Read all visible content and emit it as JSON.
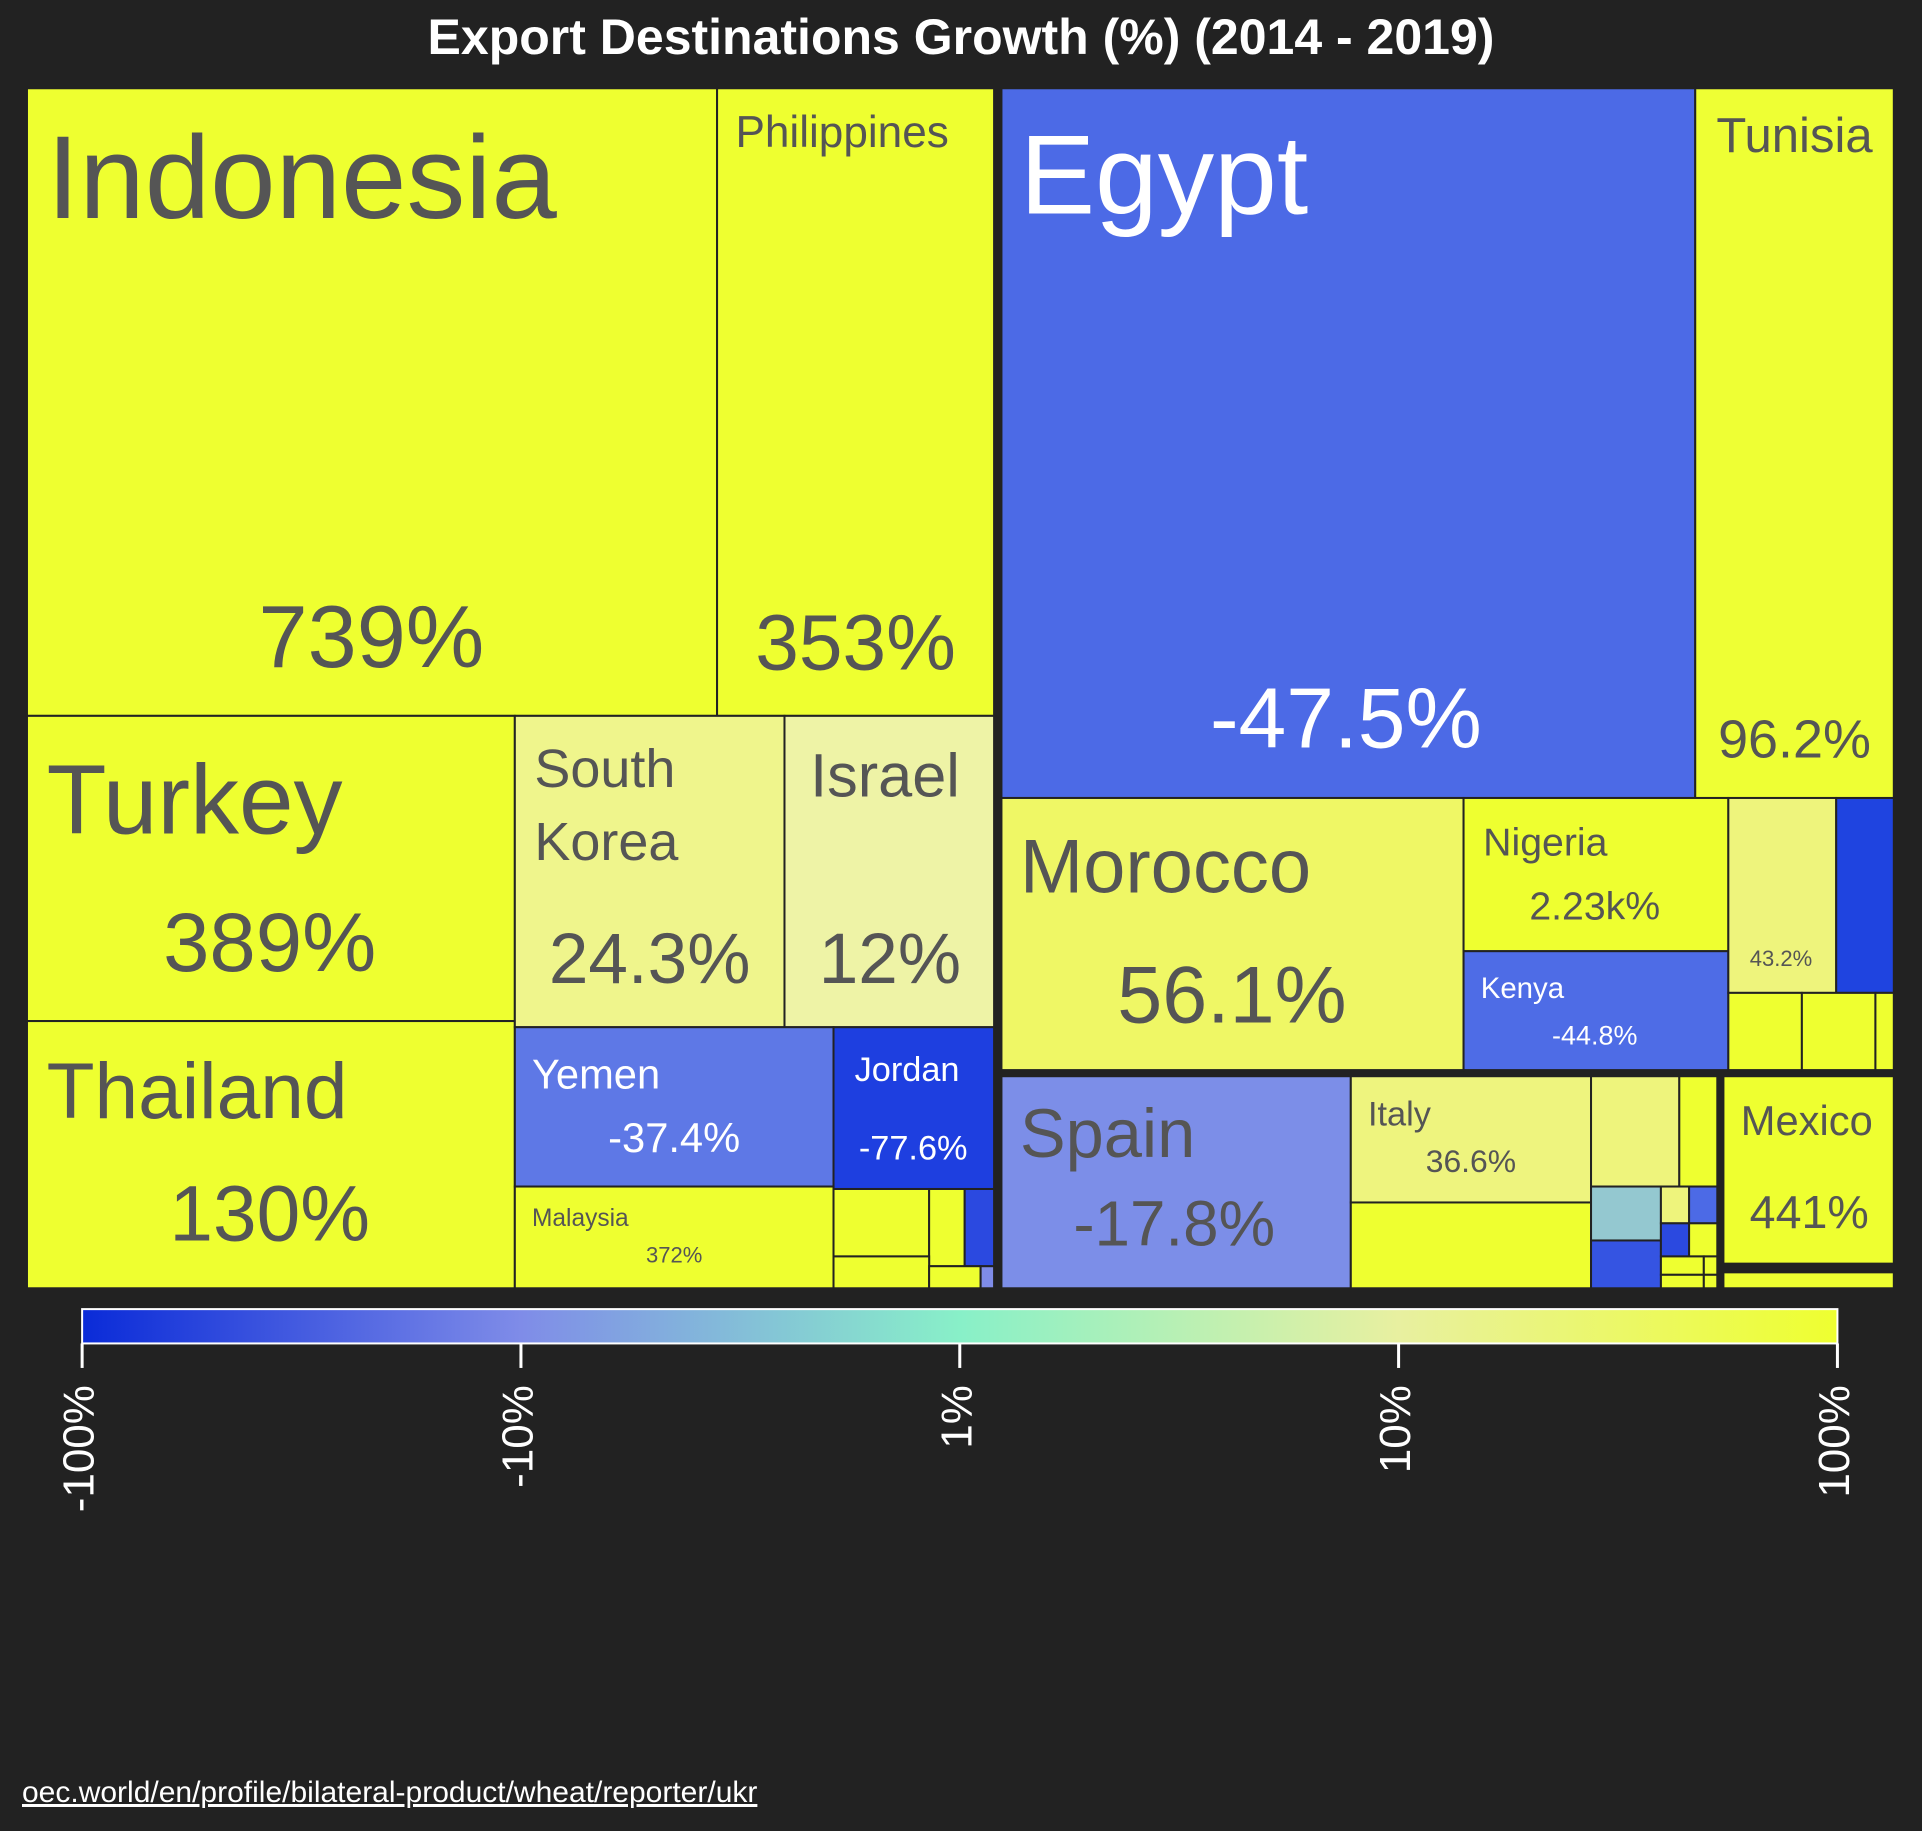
{
  "chart_data": {
    "type": "treemap",
    "title": "Export Destinations Growth (%) (2014 - 2019)",
    "colorscale": {
      "colors": [
        "#0a2bd8",
        "#7f8ce8",
        "#88f0c8",
        "#e8f0a0",
        "#eeff30"
      ],
      "ticks": [
        "-100%",
        "-10%",
        "1%",
        "10%",
        "100%"
      ]
    },
    "nodes": [
      {
        "name": "Indonesia",
        "label": "739%",
        "color": "#eeff30"
      },
      {
        "name": "Philippines",
        "label": "353%",
        "color": "#eeff30"
      },
      {
        "name": "Turkey",
        "label": "389%",
        "color": "#eeff30"
      },
      {
        "name": "Thailand",
        "label": "130%",
        "color": "#eeff30"
      },
      {
        "name": "South Korea",
        "label": "24.3%",
        "color": "#eff58c"
      },
      {
        "name": "Israel",
        "label": "12%",
        "color": "#eef3a6"
      },
      {
        "name": "Yemen",
        "label": "-37.4%",
        "color": "#5e78e6"
      },
      {
        "name": "Jordan",
        "label": "-77.6%",
        "color": "#1e3fe0"
      },
      {
        "name": "Malaysia",
        "label": "372%",
        "color": "#eeff30"
      },
      {
        "name": "Egypt",
        "label": "-47.5%",
        "color": "#4c6ae6"
      },
      {
        "name": "Tunisia",
        "label": "96.2%",
        "color": "#eeff34"
      },
      {
        "name": "Morocco",
        "label": "56.1%",
        "color": "#eff765"
      },
      {
        "name": "Nigeria",
        "label": "2.23k%",
        "color": "#eeff30"
      },
      {
        "name": "Kenya",
        "label": "-44.8%",
        "color": "#4e6ce6"
      },
      {
        "name": "",
        "label": "43.2%",
        "color": "#eef47c"
      },
      {
        "name": "Spain",
        "label": "-17.8%",
        "color": "#7c8ee8"
      },
      {
        "name": "Italy",
        "label": "36.6%",
        "color": "#eef47e"
      },
      {
        "name": "Mexico",
        "label": "441%",
        "color": "#eeff30"
      }
    ]
  },
  "source": "oec.world/en/profile/bilateral-product/wheat/reporter/ukr"
}
